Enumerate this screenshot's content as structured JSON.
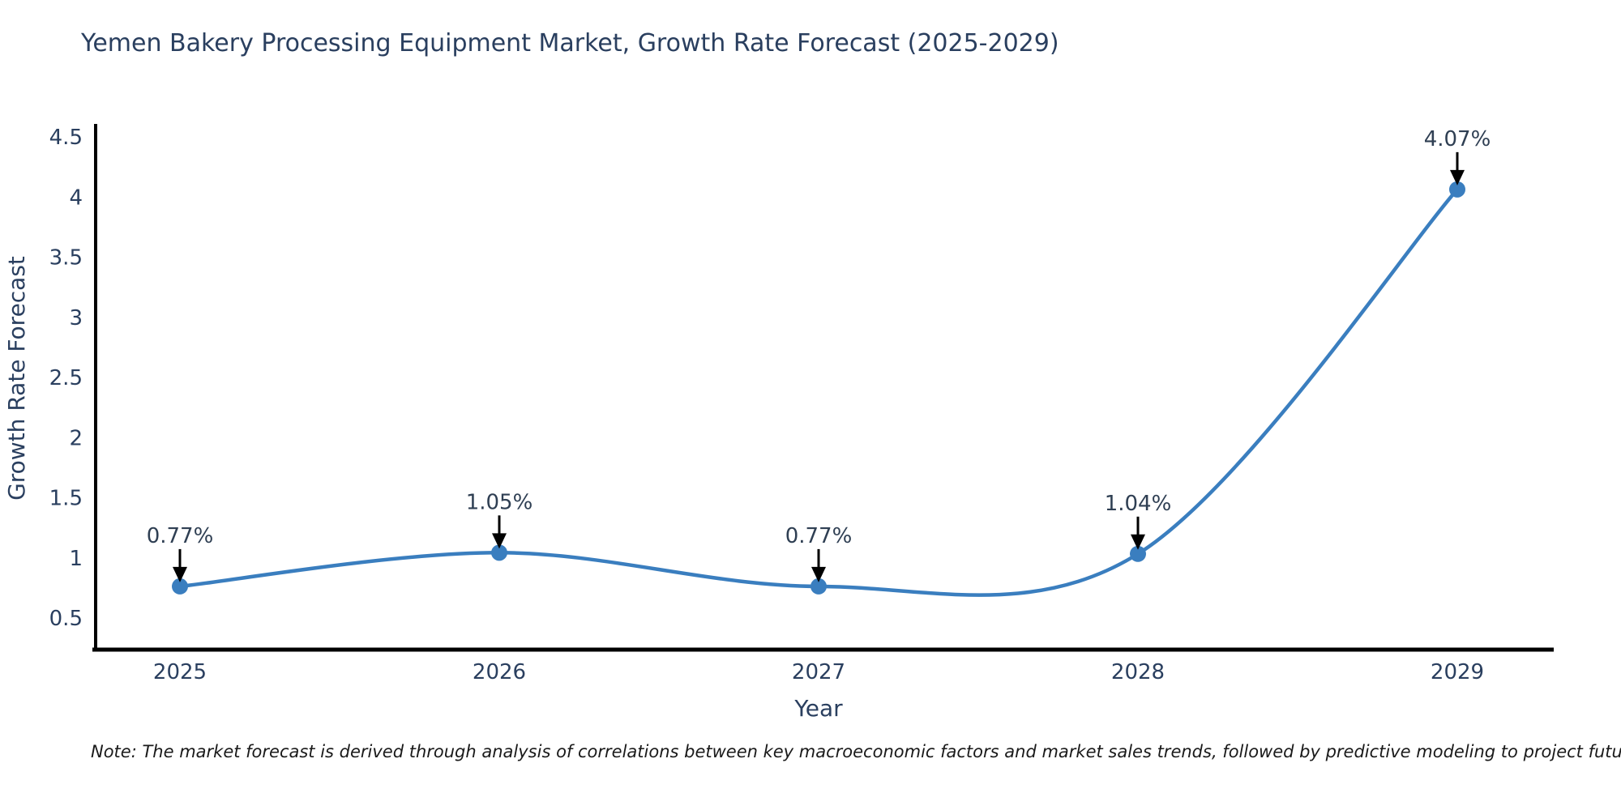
{
  "page": {
    "background": "#ffffff"
  },
  "title": {
    "text": "Yemen Bakery Processing Equipment Market, Growth Rate Forecast (2025-2029)",
    "color": "#2a3f5f"
  },
  "chart_data": {
    "type": "line",
    "title": "Yemen Bakery Processing Equipment Market, Growth Rate Forecast (2025-2029)",
    "x": [
      "2025",
      "2026",
      "2027",
      "2028",
      "2029"
    ],
    "series": [
      {
        "name": "Growth Rate Forecast",
        "values": [
          0.77,
          1.05,
          0.77,
          1.04,
          4.07
        ]
      }
    ],
    "point_labels": [
      "0.77%",
      "1.05%",
      "0.77%",
      "1.04%",
      "4.07%"
    ],
    "xlabel": "Year",
    "ylabel": "Growth Rate Forecast",
    "yticks": [
      0.5,
      1,
      1.5,
      2,
      2.5,
      3,
      3.5,
      4,
      4.5
    ],
    "ylim": [
      0.24,
      4.67
    ],
    "grid": false,
    "legend_position": "none",
    "line_shape": "spline",
    "line_color": "#3a7ebf",
    "marker_color": "#3a7ebf",
    "axis_color": "#000000",
    "tick_color": "#2a3f5f",
    "annotation_text_color": "#2f3f53",
    "annotation_arrow_color": "#000000"
  },
  "note": {
    "text": "Note: The market forecast is derived through analysis of correlations between key macroeconomic factors and market sales trends, followed by predictive modeling to project future sales"
  }
}
